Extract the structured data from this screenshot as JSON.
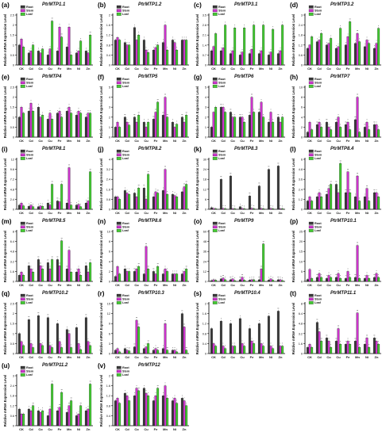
{
  "chart_data": {
    "type": "bar",
    "ylabel": "Relative mRNA Expression Level",
    "categories": [
      "CK",
      "Cd",
      "Co",
      "Cu",
      "Fe",
      "Mn",
      "Ni",
      "Zn"
    ],
    "series_names": [
      "Root",
      "Stem",
      "Leaf"
    ],
    "colors": {
      "Root": "#3a3a3a",
      "Stem": "#cc33cc",
      "Leaf": "#44cc33"
    },
    "panels": [
      {
        "label": "(a)",
        "title": "PtrMTP1.1",
        "ylim": [
          0,
          2.5
        ],
        "series": [
          {
            "name": "Root",
            "values": [
              1.0,
              0.6,
              0.7,
              0.5,
              0.7,
              0.9,
              0.6,
              0.7
            ]
          },
          {
            "name": "Stem",
            "values": [
              1.3,
              0.7,
              0.6,
              0.8,
              1.9,
              1.9,
              0.7,
              0.6
            ]
          },
          {
            "name": "Leaf",
            "values": [
              0.9,
              1.0,
              0.8,
              2.2,
              1.4,
              0.5,
              1.2,
              1.5
            ]
          }
        ]
      },
      {
        "label": "(b)",
        "title": "PtrMTP1.2",
        "ylim": [
          0,
          2.0
        ],
        "series": [
          {
            "name": "Root",
            "values": [
              1.0,
              0.9,
              1.5,
              1.0,
              0.6,
              0.9,
              1.0,
              1.0
            ]
          },
          {
            "name": "Stem",
            "values": [
              1.1,
              0.8,
              1.0,
              0.6,
              0.7,
              1.6,
              0.9,
              1.0
            ]
          },
          {
            "name": "Leaf",
            "values": [
              1.0,
              0.8,
              1.2,
              0.5,
              0.8,
              0.6,
              0.6,
              1.0
            ]
          }
        ]
      },
      {
        "label": "(c)",
        "title": "PtrMTP3.1",
        "ylim": [
          0,
          3.5
        ],
        "series": [
          {
            "name": "Root",
            "values": [
              1.0,
              1.0,
              0.8,
              0.7,
              0.8,
              0.8,
              0.7,
              0.8
            ]
          },
          {
            "name": "Stem",
            "values": [
              1.3,
              1.2,
              1.0,
              0.9,
              1.1,
              1.0,
              0.9,
              1.0
            ]
          },
          {
            "name": "Leaf",
            "values": [
              2.2,
              2.8,
              2.6,
              2.6,
              2.8,
              2.8,
              2.5,
              2.8
            ]
          }
        ]
      },
      {
        "label": "(d)",
        "title": "PtrMTP3.2",
        "ylim": [
          0,
          3.0
        ],
        "series": [
          {
            "name": "Root",
            "values": [
              1.0,
              1.4,
              1.2,
              1.0,
              1.2,
              1.3,
              1.1,
              1.0
            ]
          },
          {
            "name": "Stem",
            "values": [
              1.2,
              1.5,
              1.3,
              1.1,
              1.7,
              1.9,
              1.5,
              1.3
            ]
          },
          {
            "name": "Leaf",
            "values": [
              1.7,
              1.9,
              1.6,
              2.2,
              2.6,
              1.4,
              1.3,
              2.2
            ]
          }
        ]
      },
      {
        "label": "(e)",
        "title": "PtrMTP4",
        "ylim": [
          0,
          2.5
        ],
        "series": [
          {
            "name": "Root",
            "values": [
              1.0,
              1.3,
              1.5,
              0.9,
              1.2,
              1.3,
              1.1,
              1.0
            ]
          },
          {
            "name": "Stem",
            "values": [
              1.5,
              1.7,
              1.0,
              1.2,
              1.3,
              1.5,
              1.3,
              1.2
            ]
          },
          {
            "name": "Leaf",
            "values": [
              1.2,
              1.3,
              1.1,
              0.9,
              1.0,
              1.2,
              1.2,
              1.2
            ]
          }
        ]
      },
      {
        "label": "(f)",
        "title": "PtrMTP5",
        "ylim": [
          0,
          5.0
        ],
        "series": [
          {
            "name": "Root",
            "values": [
              1.0,
              2.0,
              2.0,
              1.5,
              1.8,
              2.2,
              1.5,
              2.0
            ]
          },
          {
            "name": "Stem",
            "values": [
              1.5,
              1.5,
              1.5,
              1.0,
              2.5,
              4.0,
              1.0,
              1.5
            ]
          },
          {
            "name": "Leaf",
            "values": [
              1.0,
              1.2,
              2.2,
              1.5,
              3.5,
              2.0,
              1.3,
              2.2
            ]
          }
        ]
      },
      {
        "label": "(g)",
        "title": "PtrMTP6",
        "ylim": [
          0,
          5.0
        ],
        "series": [
          {
            "name": "Root",
            "values": [
              1.0,
              3.0,
              2.5,
              2.0,
              2.2,
              2.5,
              1.5,
              2.0
            ]
          },
          {
            "name": "Stem",
            "values": [
              2.5,
              3.0,
              2.0,
              2.0,
              4.0,
              3.5,
              2.5,
              1.5
            ]
          },
          {
            "name": "Leaf",
            "values": [
              3.0,
              2.5,
              2.0,
              1.5,
              2.5,
              2.0,
              1.5,
              2.0
            ]
          }
        ]
      },
      {
        "label": "(h)",
        "title": "PtrMTP7",
        "ylim": [
          0,
          10
        ],
        "series": [
          {
            "name": "Root",
            "values": [
              1.0,
              2.5,
              3.0,
              3.0,
              2.5,
              3.5,
              2.0,
              2.5
            ]
          },
          {
            "name": "Stem",
            "values": [
              3.0,
              3.0,
              2.0,
              4.0,
              3.0,
              8.0,
              3.0,
              2.5
            ]
          },
          {
            "name": "Leaf",
            "values": [
              1.5,
              2.0,
              1.5,
              2.0,
              1.5,
              1.0,
              1.5,
              1.5
            ]
          }
        ]
      },
      {
        "label": "(i)",
        "title": "PtrMTP8.1",
        "ylim": [
          0,
          12
        ],
        "series": [
          {
            "name": "Root",
            "values": [
              1.0,
              0.7,
              0.6,
              1.5,
              2.0,
              1.5,
              1.0,
              1.5
            ]
          },
          {
            "name": "Stem",
            "values": [
              1.5,
              1.0,
              0.8,
              1.0,
              1.8,
              10.0,
              1.2,
              2.0
            ]
          },
          {
            "name": "Leaf",
            "values": [
              0.8,
              0.6,
              0.7,
              6.0,
              6.0,
              1.0,
              0.6,
              9.0
            ]
          }
        ]
      },
      {
        "label": "(j)",
        "title": "PtrMTP8.2",
        "ylim": [
          0,
          4.0
        ],
        "series": [
          {
            "name": "Root",
            "values": [
              1.0,
              1.5,
              1.3,
              1.7,
              1.0,
              1.5,
              1.2,
              1.4
            ]
          },
          {
            "name": "Stem",
            "values": [
              1.0,
              1.3,
              1.0,
              0.8,
              1.4,
              3.2,
              1.1,
              1.8
            ]
          },
          {
            "name": "Leaf",
            "values": [
              0.8,
              1.2,
              1.7,
              2.8,
              1.3,
              1.2,
              1.0,
              2.0
            ]
          }
        ]
      },
      {
        "label": "(k)",
        "title": "PtrMTP8.3",
        "ylim": [
          0,
          30
        ],
        "series": [
          {
            "name": "Root",
            "values": [
              1.0,
              18.0,
              20.0,
              1.5,
              8.0,
              14.0,
              24.0,
              26.0
            ]
          },
          {
            "name": "Stem",
            "values": [
              0.5,
              0.5,
              0.4,
              0.5,
              0.6,
              0.5,
              0.5,
              0.4
            ]
          },
          {
            "name": "Leaf",
            "values": [
              0.3,
              0.4,
              0.3,
              0.3,
              0.4,
              0.3,
              0.3,
              0.3
            ]
          }
        ]
      },
      {
        "label": "(l)",
        "title": "PtrMTP8.4",
        "ylim": [
          0,
          6.0
        ],
        "series": [
          {
            "name": "Root",
            "values": [
              1.0,
              1.5,
              1.8,
              3.0,
              2.0,
              1.5,
              1.5,
              2.0
            ]
          },
          {
            "name": "Stem",
            "values": [
              1.5,
              2.0,
              2.5,
              2.0,
              4.5,
              4.0,
              2.5,
              2.0
            ]
          },
          {
            "name": "Leaf",
            "values": [
              1.0,
              1.5,
              3.0,
              5.5,
              2.0,
              1.0,
              1.0,
              1.5
            ]
          }
        ]
      },
      {
        "label": "(m)",
        "title": "PtrMTP8.5",
        "ylim": [
          0,
          8.0
        ],
        "series": [
          {
            "name": "Root",
            "values": [
              1.0,
              2.5,
              3.5,
              3.0,
              3.5,
              2.0,
              1.5,
              2.5
            ]
          },
          {
            "name": "Stem",
            "values": [
              1.5,
              2.0,
              2.5,
              2.0,
              2.5,
              5.0,
              2.0,
              1.5
            ]
          },
          {
            "name": "Leaf",
            "values": [
              1.0,
              1.5,
              2.0,
              3.5,
              6.5,
              1.5,
              1.0,
              3.0
            ]
          }
        ]
      },
      {
        "label": "(n)",
        "title": "PtrMTP8.6",
        "ylim": [
          0,
          10
        ],
        "series": [
          {
            "name": "Root",
            "values": [
              1.0,
              2.5,
              2.0,
              1.5,
              2.0,
              1.5,
              1.5,
              1.5
            ]
          },
          {
            "name": "Stem",
            "values": [
              3.0,
              2.0,
              2.5,
              7.0,
              1.5,
              2.5,
              1.5,
              2.0
            ]
          },
          {
            "name": "Leaf",
            "values": [
              1.5,
              2.0,
              3.0,
              2.5,
              3.0,
              2.0,
              1.5,
              2.5
            ]
          }
        ]
      },
      {
        "label": "(o)",
        "title": "PtrMTP9",
        "ylim": [
          0,
          60
        ],
        "series": [
          {
            "name": "Root",
            "values": [
              1.0,
              3.0,
              2.0,
              2.0,
              1.5,
              2.0,
              1.5,
              2.0
            ]
          },
          {
            "name": "Stem",
            "values": [
              2.0,
              4.0,
              3.0,
              5.0,
              2.0,
              15.0,
              3.0,
              2.0
            ]
          },
          {
            "name": "Leaf",
            "values": [
              1.5,
              2.0,
              1.0,
              1.5,
              2.0,
              45.0,
              1.5,
              1.0
            ]
          }
        ]
      },
      {
        "label": "(p)",
        "title": "PtrMTP10.1",
        "ylim": [
          0,
          25
        ],
        "series": [
          {
            "name": "Root",
            "values": [
              1.0,
              2.0,
              1.5,
              2.0,
              1.5,
              2.0,
              1.5,
              2.0
            ]
          },
          {
            "name": "Stem",
            "values": [
              6.0,
              4.0,
              3.0,
              4.0,
              5.0,
              18.0,
              3.0,
              4.0
            ]
          },
          {
            "name": "Leaf",
            "values": [
              1.5,
              2.0,
              2.0,
              1.5,
              2.0,
              1.5,
              1.5,
              2.0
            ]
          }
        ]
      },
      {
        "label": "(q)",
        "title": "PtrMTP10.2",
        "ylim": [
          0,
          2.5
        ],
        "series": [
          {
            "name": "Root",
            "values": [
              1.0,
              1.7,
              1.9,
              1.8,
              1.5,
              1.2,
              1.3,
              1.8
            ]
          },
          {
            "name": "Stem",
            "values": [
              0.6,
              0.5,
              0.5,
              0.4,
              0.6,
              1.0,
              0.5,
              0.6
            ]
          },
          {
            "name": "Leaf",
            "values": [
              0.4,
              0.3,
              0.4,
              0.3,
              0.3,
              0.3,
              0.2,
              0.4
            ]
          }
        ]
      },
      {
        "label": "(r)",
        "title": "PtrMTP10.3",
        "ylim": [
          0,
          15
        ],
        "series": [
          {
            "name": "Root",
            "values": [
              1.0,
              1.5,
              2.0,
              1.5,
              1.0,
              1.5,
              1.0,
              12.0
            ]
          },
          {
            "name": "Stem",
            "values": [
              1.5,
              1.0,
              10.0,
              2.0,
              1.5,
              9.0,
              1.0,
              8.0
            ]
          },
          {
            "name": "Leaf",
            "values": [
              0.5,
              0.8,
              8.0,
              3.0,
              1.0,
              1.0,
              0.5,
              1.0
            ]
          }
        ]
      },
      {
        "label": "(s)",
        "title": "PtrMTP10.4",
        "ylim": [
          0,
          2.0
        ],
        "series": [
          {
            "name": "Root",
            "values": [
              1.0,
              1.3,
              1.2,
              1.4,
              1.0,
              1.2,
              1.5,
              1.7
            ]
          },
          {
            "name": "Stem",
            "values": [
              0.4,
              0.3,
              0.3,
              0.4,
              0.5,
              0.4,
              0.3,
              0.3
            ]
          },
          {
            "name": "Leaf",
            "values": [
              0.3,
              0.2,
              0.3,
              0.3,
              0.4,
              0.3,
              0.2,
              0.3
            ]
          }
        ]
      },
      {
        "label": "(t)",
        "title": "PtrMTP11.1",
        "ylim": [
          0,
          8.0
        ],
        "series": [
          {
            "name": "Root",
            "values": [
              1.0,
              5.0,
              2.5,
              2.0,
              1.5,
              2.0,
              1.5,
              2.5
            ]
          },
          {
            "name": "Stem",
            "values": [
              1.5,
              3.5,
              2.0,
              4.0,
              2.0,
              6.5,
              2.5,
              2.0
            ]
          },
          {
            "name": "Leaf",
            "values": [
              1.0,
              2.0,
              1.0,
              1.5,
              1.5,
              1.0,
              1.0,
              1.5
            ]
          }
        ]
      },
      {
        "label": "(u)",
        "title": "PtrMTP11.2",
        "ylim": [
          0,
          3.0
        ],
        "series": [
          {
            "name": "Root",
            "values": [
              1.0,
              1.0,
              0.9,
              0.6,
              0.9,
              0.8,
              0.6,
              0.9
            ]
          },
          {
            "name": "Stem",
            "values": [
              0.7,
              0.9,
              0.8,
              1.0,
              1.1,
              1.2,
              0.7,
              1.0
            ]
          },
          {
            "name": "Leaf",
            "values": [
              0.7,
              1.2,
              0.9,
              2.5,
              2.0,
              1.5,
              1.2,
              2.5
            ]
          }
        ]
      },
      {
        "label": "(v)",
        "title": "PtrMTP12",
        "ylim": [
          0,
          2.0
        ],
        "series": [
          {
            "name": "Root",
            "values": [
              1.0,
              1.3,
              1.2,
              1.5,
              1.0,
              1.2,
              1.0,
              1.1
            ]
          },
          {
            "name": "Stem",
            "values": [
              1.1,
              1.2,
              1.5,
              1.3,
              1.2,
              1.6,
              1.1,
              1.0
            ]
          },
          {
            "name": "Leaf",
            "values": [
              0.9,
              1.0,
              1.4,
              1.2,
              1.5,
              1.1,
              0.9,
              0.8
            ]
          }
        ]
      }
    ]
  }
}
